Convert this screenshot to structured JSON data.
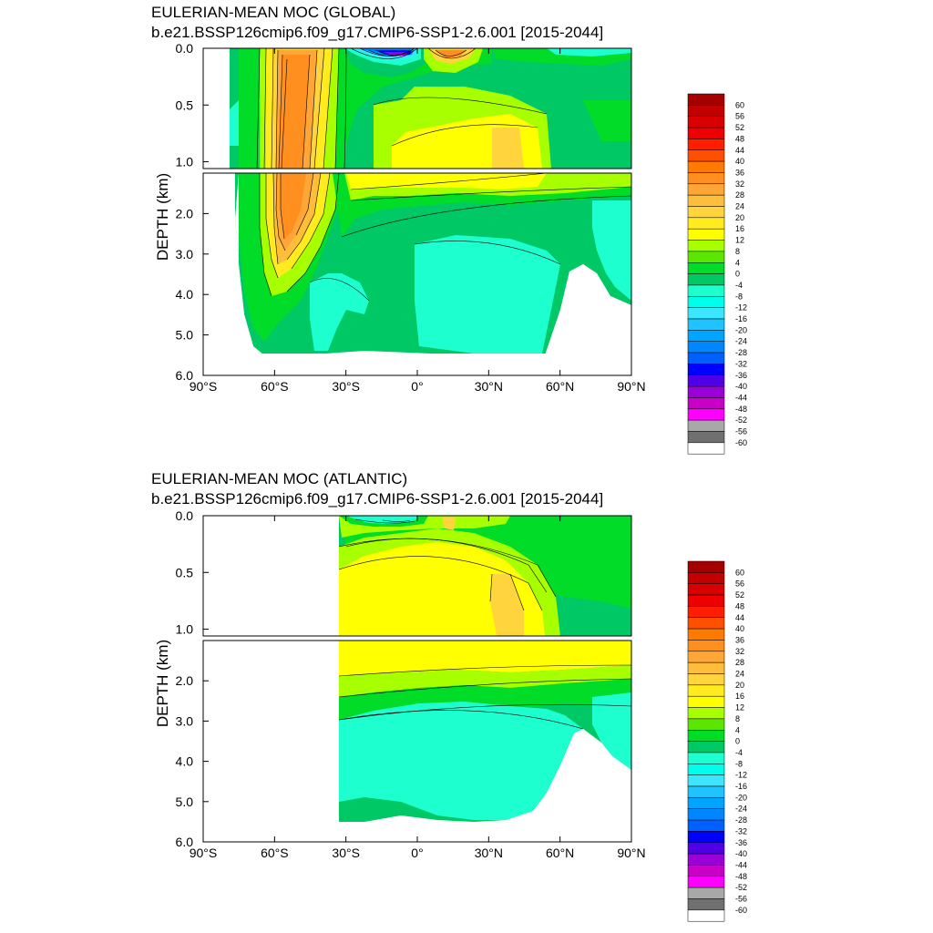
{
  "chart_data": [
    {
      "type": "heatmap",
      "title": "EULERIAN-MEAN MOC (GLOBAL)",
      "subtitle": "b.e21.BSSP126cmip6.f09_g17.CMIP6-SSP1-2.6.001 [2015-2044]",
      "ylabel": "DEPTH (km)",
      "xlim": [
        -90,
        90
      ],
      "ylim": [
        0,
        6
      ],
      "upper_yticks": [
        "0.0",
        "0.5",
        "1.0"
      ],
      "lower_yticks": [
        "2.0",
        "3.0",
        "4.0",
        "5.0",
        "6.0"
      ],
      "xticks": [
        "90°S",
        "60°S",
        "30°S",
        "0°",
        "30°N",
        "60°N",
        "90°N"
      ],
      "data_lat_range": [
        -79,
        90
      ],
      "features": [
        {
          "lat": -48,
          "depth": 1.5,
          "value": 36
        },
        {
          "lat": -50,
          "depth": 3.0,
          "value": 28
        },
        {
          "lat": -15,
          "depth": 0.1,
          "value": -36
        },
        {
          "lat": 10,
          "depth": 0.1,
          "value": 28
        },
        {
          "lat": 35,
          "depth": 0.8,
          "value": 16
        },
        {
          "lat": 10,
          "depth": 1.2,
          "value": 12
        },
        {
          "lat": 20,
          "depth": 3.5,
          "value": -4
        }
      ]
    },
    {
      "type": "heatmap",
      "title": "EULERIAN-MEAN MOC (ATLANTIC)",
      "subtitle": "b.e21.BSSP126cmip6.f09_g17.CMIP6-SSP1-2.6.001 [2015-2044]",
      "ylabel": "DEPTH (km)",
      "xlim": [
        -90,
        90
      ],
      "ylim": [
        0,
        6
      ],
      "upper_yticks": [
        "0.0",
        "0.5",
        "1.0"
      ],
      "lower_yticks": [
        "2.0",
        "3.0",
        "4.0",
        "5.0",
        "6.0"
      ],
      "xticks": [
        "90°S",
        "60°S",
        "30°S",
        "0°",
        "30°N",
        "60°N",
        "90°N"
      ],
      "data_lat_range": [
        -33,
        90
      ],
      "features": [
        {
          "lat": 35,
          "depth": 0.8,
          "value": 16
        },
        {
          "lat": 0,
          "depth": 1.0,
          "value": 12
        },
        {
          "lat": 10,
          "depth": 3.8,
          "value": -4
        },
        {
          "lat": -20,
          "depth": 0.05,
          "value": -4
        }
      ]
    }
  ],
  "colorbar": {
    "labels": [
      "60",
      "56",
      "52",
      "48",
      "44",
      "40",
      "36",
      "32",
      "28",
      "24",
      "20",
      "16",
      "12",
      "8",
      "4",
      "0",
      "-4",
      "-8",
      "-12",
      "-16",
      "-20",
      "-24",
      "-28",
      "-32",
      "-36",
      "-40",
      "-44",
      "-48",
      "-52",
      "-56",
      "-60"
    ],
    "colors": [
      "#a50000",
      "#c30000",
      "#d80000",
      "#ee0000",
      "#ff1e00",
      "#ff4f00",
      "#ff7a00",
      "#ff8f1e",
      "#ffa637",
      "#ffbd3c",
      "#ffd43c",
      "#ffeb1e",
      "#ffff00",
      "#a8ff00",
      "#5ae600",
      "#00dc28",
      "#00c864",
      "#1effcf",
      "#00ffeb",
      "#3ce6ff",
      "#1ec3ff",
      "#00a5ff",
      "#0087ff",
      "#0060ff",
      "#0000ff",
      "#5000e6",
      "#9a00d8",
      "#c800c8",
      "#ff00ff",
      "#a8a8a8",
      "#707070",
      "#ffffff"
    ]
  }
}
